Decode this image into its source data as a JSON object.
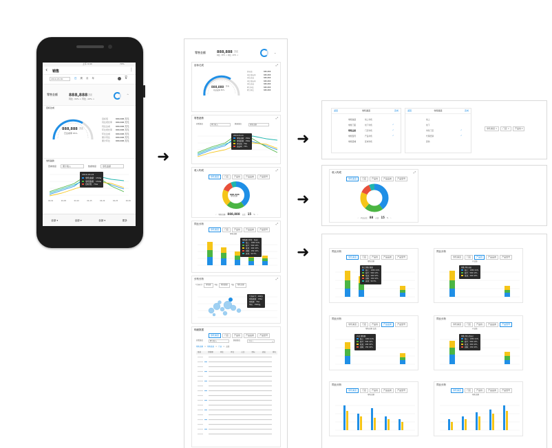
{
  "phone": {
    "status_time": "上午 9:40",
    "status_battery": "70%",
    "title": "销售",
    "date": "2019-03-30",
    "date_icon": "calendar-icon",
    "periods": [
      "日",
      "周",
      "月",
      "年"
    ],
    "metric_label": "零售金额",
    "metric_value": "888,888",
    "metric_unit": "万元",
    "metric_sub": "同比 -30% ↓   环比 -10% ↓",
    "section_overview": "目标达成",
    "gauge_value": "888,888",
    "gauge_unit": "万元",
    "gauge_sub": "已达成率 85%",
    "kv_labels": [
      "目标值",
      "同比增长率",
      "同比达成",
      "环比增长率",
      "环比达成",
      "累计同比",
      "累计环比"
    ],
    "kv_values": [
      "888,888 万元",
      "888,888 万元",
      "888,888 万元",
      "888,888 万元",
      "888,888 万元",
      "888,888 万元",
      "888,888 万元"
    ],
    "section_trend": "零售趋势",
    "filter1_label": "查看维度",
    "filter1_value": "累计收入",
    "filter2_label": "数据维度",
    "filter2_value": "零售金额",
    "tip_title": "2019-03-24",
    "tip_rows": [
      "零售金额：150w",
      "零售数量：150w",
      "目标值：70w"
    ],
    "x_ticks": [
      "04-01",
      "04-05",
      "04-10",
      "04-15",
      "04-20",
      "04-25",
      "04-30"
    ],
    "bottom_nav": [
      "全部",
      "全部",
      "全部",
      "更多"
    ]
  },
  "middle": {
    "metric_label": "零售金额",
    "metric_value": "888,888",
    "metric_unit": "万元",
    "metric_sub": "同比 -30% ↓  环比 -10% ↓",
    "section1": "目标达成",
    "gauge_value": "888,888",
    "gauge_unit": "万元",
    "gauge_sub": "已达成率 85%",
    "kv_labels": [
      "目标值",
      "同比增长率",
      "同比达成",
      "环比增长率",
      "环比达成",
      "累计同比",
      "累计环比"
    ],
    "kv_values": [
      "888,888",
      "888,888",
      "888,888",
      "888,888",
      "888,888",
      "888,888",
      "888,888"
    ],
    "section2": "零售趋势",
    "trend_filter1_label": "查看维度",
    "trend_filter1_value": "累计收入",
    "trend_filter2_label": "数据维度",
    "trend_filter2_value": "零售金额",
    "trend_tip_title": "2019-03-24",
    "trend_tip_rows": [
      "零售金额：150w",
      "零售数量：150w",
      "目标值：70w",
      "达成率：75%"
    ],
    "section3": "收入构成",
    "donut_tabs": [
      "零售渠道",
      "门店",
      "产品线",
      "产品品类",
      "产品型号"
    ],
    "donut_center": "888,888",
    "donut_center_sub": "零售金额",
    "donut_footer_label": "零售金额",
    "donut_footer_value": "888,888",
    "donut_footer_pct_label": "占比",
    "donut_footer_pct": "15",
    "donut_footer_pct_unit": "%",
    "section4": "同比分析",
    "bar_tabs": [
      "零售渠道",
      "门店",
      "产品线",
      "产品品类",
      "产品型号"
    ],
    "bar_title": "零售金额",
    "bar_tip_title": "零售额 (单位：万元)",
    "bar_tip_rows": [
      "线上：1050  24%",
      "线下：500  14%",
      "批发：200  10%",
      "团购：150  10%",
      "其他：50  5%"
    ],
    "section5": "分布分析",
    "scatter_filters": [
      "气泡尺寸",
      "零售额",
      "X轴",
      "零售数量",
      "Y轴",
      "零售金额"
    ],
    "scatter_tip_rows": [
      "气泡尺寸：200万",
      "零售数量：150w",
      "零售额：70w",
      "单价：1500元"
    ],
    "section6": "明细数据",
    "table_tabs": [
      "零售渠道",
      "门店",
      "产品线",
      "产品品类",
      "产品型号"
    ],
    "table_filter_label": "查看维度",
    "table_filter_value": "累计收入",
    "table_search_label": "数据维度",
    "table_search_placeholder": "请输入",
    "table_breadcrumb": [
      "零售金额",
      "零售渠道",
      "门店",
      "品类"
    ],
    "table_headers": [
      "渠道",
      "销售额",
      "同比",
      "环比",
      "占比",
      "目标",
      "达成",
      "排名"
    ]
  },
  "right_top": {
    "left_header": [
      "返回",
      "零售渠道",
      "完成"
    ],
    "left_items": [
      "零售渠道",
      "零售门店",
      "零售品类",
      "零售型号",
      "零售区域"
    ],
    "left_subitems": [
      "线上零售",
      "线下零售",
      "门店零售",
      "产品零售",
      "区域零售"
    ],
    "right_header": [
      "返回",
      "零售渠道",
      "完成"
    ],
    "right_items": [
      "线上",
      "线下",
      "零售门店",
      "代理经销",
      "其他"
    ],
    "chip_items": [
      "零售渠道",
      "门店",
      "产品线"
    ]
  },
  "right_mid": {
    "header": "收入构成",
    "tabs": [
      "零售渠道",
      "门店",
      "产品线",
      "产品品类",
      "产品型号"
    ],
    "footer_label": "产品占比",
    "footer_value": "88",
    "footer_pct_label": "占比",
    "footer_pct": "15"
  },
  "right_bottom": {
    "cards": [
      {
        "header": "同比分析",
        "title": "零售金额",
        "tip": "线上销售 数量"
      },
      {
        "header": "同比分析",
        "title": "产品线",
        "tip": "零售 单价(元)"
      },
      {
        "header": "同比分析",
        "title": "零售金额 品类",
        "tip": "产品 销售额"
      },
      {
        "header": "同比分析",
        "title": "产品线",
        "tip": "零售 单价(万元)"
      },
      {
        "header": "同比分析",
        "title": "零售金额",
        "tip": ""
      },
      {
        "header": "同比分析",
        "title": "零售金额",
        "tip": ""
      }
    ],
    "tabs": [
      "零售渠道",
      "门店",
      "产品线",
      "产品品类",
      "产品型号"
    ],
    "tip_rows": [
      "线上：1050 24%",
      "线下：500 14%",
      "批发：200 10%",
      "团购：150 10%",
      "其他：50 5%"
    ]
  },
  "colors": {
    "blue": "#1f8fe6",
    "green": "#4bb543",
    "yellow": "#f5c518",
    "red": "#e8503a",
    "teal": "#1fb5ad",
    "dark": "#2a2a2a"
  }
}
